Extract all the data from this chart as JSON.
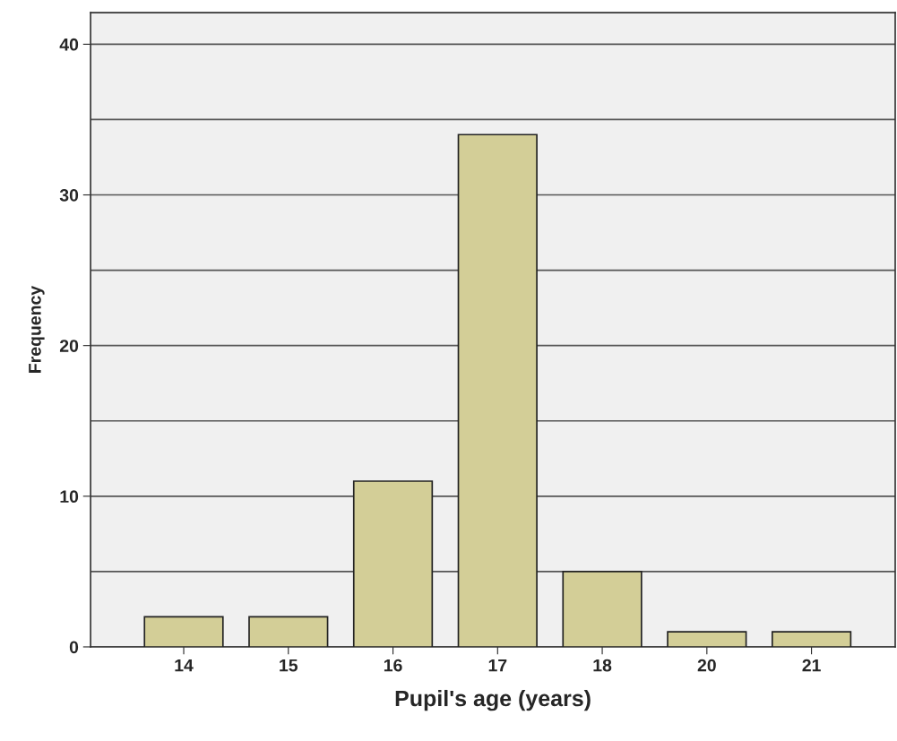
{
  "chart_data": {
    "type": "bar",
    "xlabel": "Pupil's age (years)",
    "ylabel": "Frequency",
    "categories": [
      "14",
      "15",
      "16",
      "17",
      "18",
      "20",
      "21"
    ],
    "values": [
      2,
      2,
      11,
      34,
      5,
      1,
      1
    ],
    "color": "#d3ce97",
    "ylim": [
      0,
      42.1
    ],
    "yticks": [
      0,
      {
        "value": 5,
        "label": null
      },
      10,
      {
        "value": 15,
        "label": null
      },
      20,
      {
        "value": 25,
        "label": null
      },
      30,
      {
        "value": 35,
        "label": null
      },
      40
    ],
    "grid": "y",
    "legend": false
  }
}
